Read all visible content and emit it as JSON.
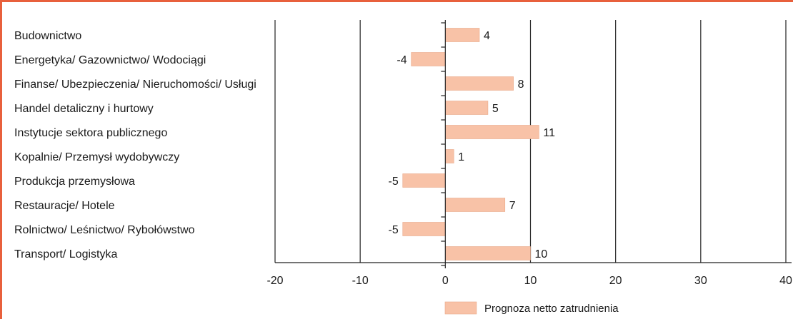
{
  "colors": {
    "frame": "#e8603c",
    "bar": "#f8c2a7",
    "bar_stroke": "#e9a888",
    "grid": "#222222",
    "text": "#1a1a1a"
  },
  "chart_data": {
    "type": "bar",
    "orientation": "horizontal",
    "categories": [
      "Budownictwo",
      "Energetyka/ Gazownictwo/ Wodociągi",
      "Finanse/ Ubezpieczenia/ Nieruchomości/ Usługi",
      "Handel detaliczny i hurtowy",
      "Instytucje sektora publicznego",
      "Kopalnie/ Przemysł wydobywczy",
      "Produkcja przemysłowa",
      "Restauracje/ Hotele",
      "Rolnictwo/ Leśnictwo/ Rybołówstwo",
      "Transport/ Logistyka"
    ],
    "series": [
      {
        "name": "Prognoza netto zatrudnienia",
        "values": [
          4,
          -4,
          8,
          5,
          11,
          1,
          -5,
          7,
          -5,
          10
        ]
      }
    ],
    "value_labels": [
      "4",
      "-4",
      "8",
      "5",
      "11",
      "1",
      "-5",
      "7",
      "-5",
      "10"
    ],
    "xlim": [
      -20,
      40
    ],
    "xticks": [
      -20,
      -10,
      0,
      10,
      20,
      30,
      40
    ],
    "xtick_labels": [
      "-20",
      "-10",
      "0",
      "10",
      "20",
      "30",
      "40"
    ],
    "grid": true,
    "legend": {
      "position": "bottom",
      "label": "Prognoza netto zatrudnienia"
    }
  }
}
